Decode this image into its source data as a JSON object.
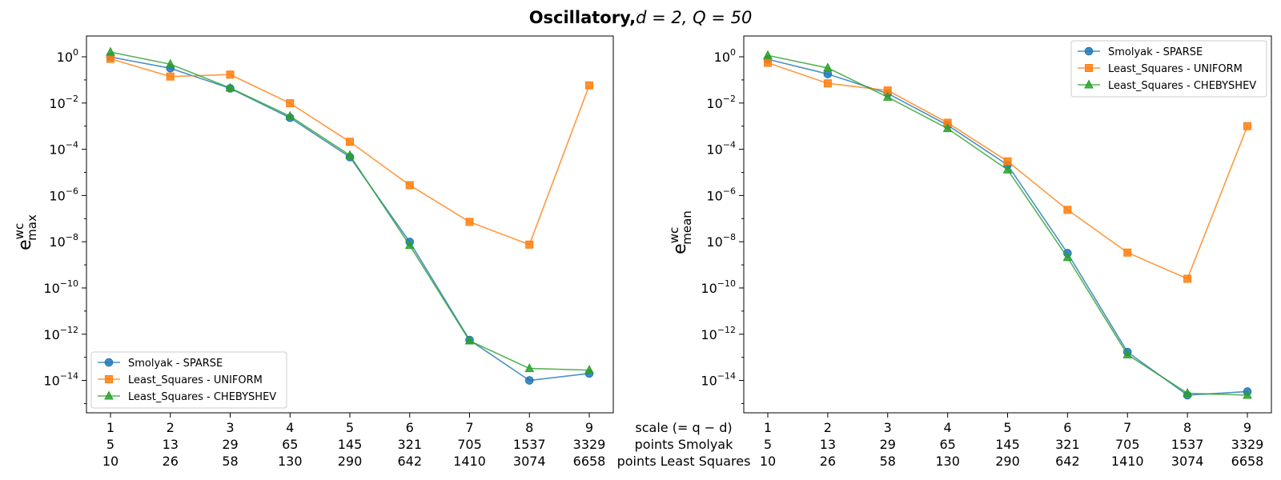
{
  "figure": {
    "title_bold": "Oscillatory,",
    "title_math": "d = 2, Q = 50",
    "colors": {
      "sparse": "#1f77b4",
      "uniform": "#ff7f0e",
      "chebyshev": "#2ca02c"
    }
  },
  "row_labels": [
    "scale (= q − d)",
    "points Smolyak",
    "points Least Squares"
  ],
  "chart_data": [
    {
      "type": "line",
      "yscale": "log",
      "ylim_exp": [
        -15.4,
        0.9
      ],
      "ylabel_base": "e",
      "ylabel_sup": "wc",
      "ylabel_sub": "max",
      "ytick_exponents": [
        0,
        -2,
        -4,
        -6,
        -8,
        -10,
        -12,
        -14
      ],
      "ytick_base": "10",
      "ytick_labels": [
        "0",
        "−2",
        "−4",
        "−6",
        "−8",
        "−10",
        "−12",
        "−14"
      ],
      "x": [
        1,
        2,
        3,
        4,
        5,
        6,
        7,
        8,
        9
      ],
      "tick_rows": [
        [
          "1",
          "2",
          "3",
          "4",
          "5",
          "6",
          "7",
          "8",
          "9"
        ],
        [
          "5",
          "13",
          "29",
          "65",
          "145",
          "321",
          "705",
          "1537",
          "3329"
        ],
        [
          "10",
          "26",
          "58",
          "130",
          "290",
          "642",
          "1410",
          "3074",
          "6658"
        ]
      ],
      "legend": {
        "position": "lower-left",
        "entries": [
          "Smolyak - SPARSE",
          "Least_Squares - UNIFORM",
          "Least_Squares - CHEBYSHEV"
        ]
      },
      "series": [
        {
          "name": "Smolyak - SPARSE",
          "marker": "circle",
          "color": "#1f77b4",
          "values": [
            0.98,
            0.32,
            0.043,
            0.0023,
            4.6e-05,
            9.8e-09,
            5.6e-13,
            1e-14,
            2e-14
          ]
        },
        {
          "name": "Least_Squares - UNIFORM",
          "marker": "square",
          "color": "#ff7f0e",
          "values": [
            0.82,
            0.14,
            0.17,
            0.0098,
            0.00021,
            2.8e-06,
            7.2e-08,
            7.5e-09,
            0.058
          ]
        },
        {
          "name": "Least_Squares - CHEBYSHEV",
          "marker": "triangle",
          "color": "#2ca02c",
          "values": [
            1.6,
            0.48,
            0.045,
            0.0027,
            5.5e-05,
            7e-09,
            5.2e-13,
            3.3e-14,
            2.8e-14
          ]
        }
      ]
    },
    {
      "type": "line",
      "yscale": "log",
      "ylim_exp": [
        -15.4,
        0.9
      ],
      "ylabel_base": "e",
      "ylabel_sup": "wc",
      "ylabel_sub": "mean",
      "ytick_exponents": [
        0,
        -2,
        -4,
        -6,
        -8,
        -10,
        -12,
        -14
      ],
      "ytick_base": "10",
      "ytick_labels": [
        "0",
        "−2",
        "−4",
        "−6",
        "−8",
        "−10",
        "−12",
        "−14"
      ],
      "x": [
        1,
        2,
        3,
        4,
        5,
        6,
        7,
        8,
        9
      ],
      "tick_rows": [
        [
          "1",
          "2",
          "3",
          "4",
          "5",
          "6",
          "7",
          "8",
          "9"
        ],
        [
          "5",
          "13",
          "29",
          "65",
          "145",
          "321",
          "705",
          "1537",
          "3329"
        ],
        [
          "10",
          "26",
          "58",
          "130",
          "290",
          "642",
          "1410",
          "3074",
          "6658"
        ]
      ],
      "legend": {
        "position": "upper-right",
        "entries": [
          "Smolyak - SPARSE",
          "Least_Squares - UNIFORM",
          "Least_Squares - CHEBYSHEV"
        ]
      },
      "series": [
        {
          "name": "Smolyak - SPARSE",
          "marker": "circle",
          "color": "#1f77b4",
          "values": [
            0.78,
            0.18,
            0.026,
            0.0011,
            2.1e-05,
            3.2e-09,
            1.7e-13,
            2.3e-15,
            3.3e-15
          ]
        },
        {
          "name": "Least_Squares - UNIFORM",
          "marker": "square",
          "color": "#ff7f0e",
          "values": [
            0.55,
            0.071,
            0.035,
            0.0014,
            3e-05,
            2.4e-07,
            3.4e-09,
            2.5e-10,
            0.001
          ]
        },
        {
          "name": "Least_Squares - CHEBYSHEV",
          "marker": "triangle",
          "color": "#2ca02c",
          "values": [
            1.15,
            0.33,
            0.018,
            0.00079,
            1.3e-05,
            2.1e-09,
            1.3e-13,
            2.8e-15,
            2.3e-15
          ]
        }
      ]
    }
  ]
}
